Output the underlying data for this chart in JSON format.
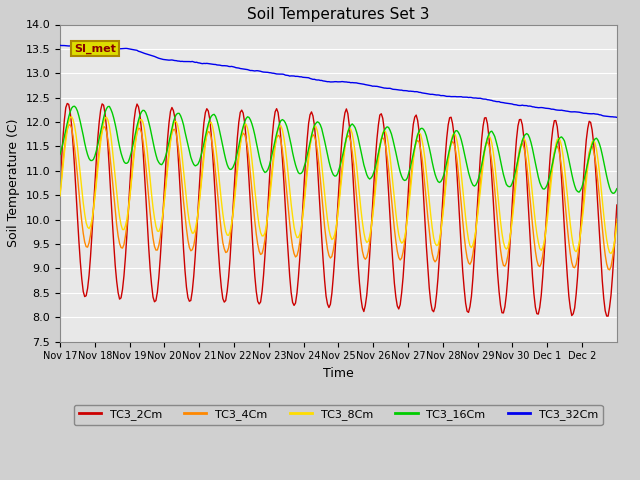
{
  "title": "Soil Temperatures Set 3",
  "xlabel": "Time",
  "ylabel": "Soil Temperature (C)",
  "ylim": [
    7.5,
    14.0
  ],
  "yticks": [
    7.5,
    8.0,
    8.5,
    9.0,
    9.5,
    10.0,
    10.5,
    11.0,
    11.5,
    12.0,
    12.5,
    13.0,
    13.5,
    14.0
  ],
  "colors": {
    "TC3_2Cm": "#cc0000",
    "TC3_4Cm": "#ff8800",
    "TC3_8Cm": "#ffdd00",
    "TC3_16Cm": "#00cc00",
    "TC3_32Cm": "#0000ee"
  },
  "annotation_text": "SI_met",
  "annotation_bg": "#dddd00",
  "annotation_border": "#aa8800",
  "n_days": 16,
  "title_fontsize": 11,
  "label_fontsize": 9,
  "tick_fontsize": 8,
  "legend_fontsize": 8,
  "day_labels": [
    "Nov 17",
    "Nov 18",
    "Nov 19",
    "Nov 20",
    "Nov 21",
    "Nov 22",
    "Nov 23",
    "Nov 24",
    "Nov 25",
    "Nov 26",
    "Nov 27",
    "Nov 28",
    "Nov 29",
    "Nov 30",
    "Dec 1",
    "Dec 2"
  ]
}
